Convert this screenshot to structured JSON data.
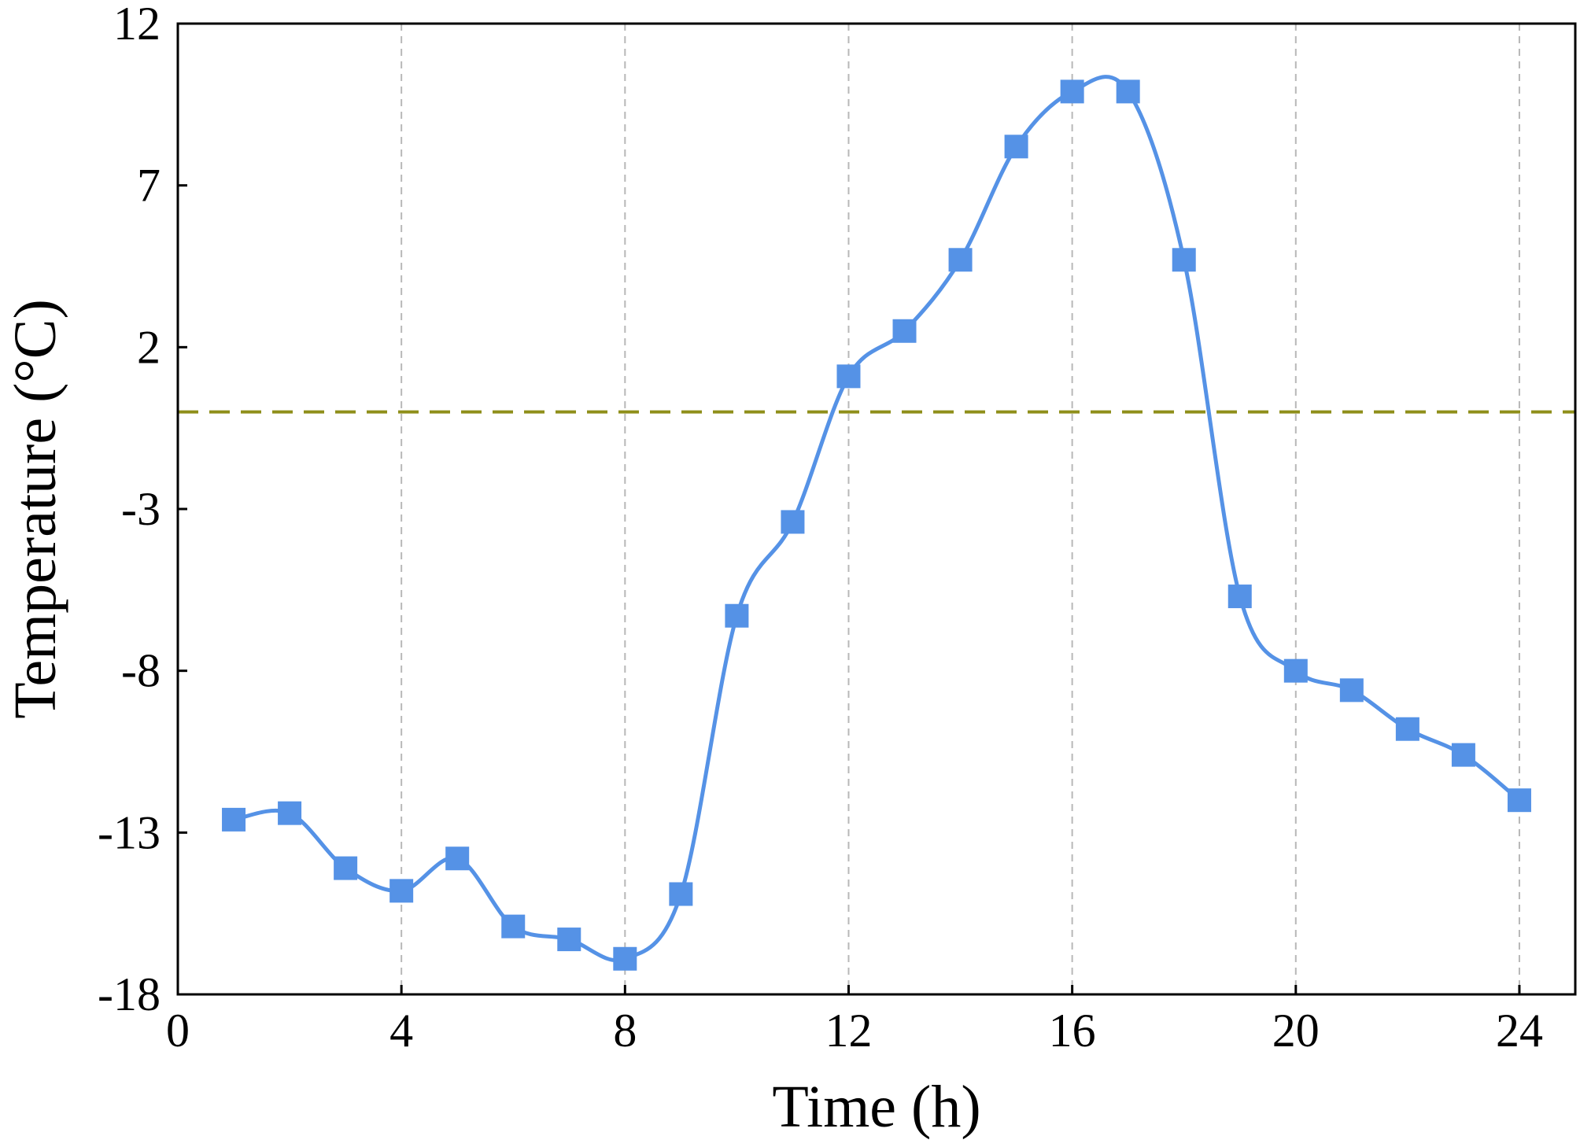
{
  "chart_data": {
    "type": "line",
    "xlabel": "Time (h)",
    "ylabel": "Temperature (°C)",
    "xlim": [
      0,
      25
    ],
    "ylim": [
      -18,
      12
    ],
    "xticks": [
      0,
      4,
      8,
      12,
      16,
      20,
      24
    ],
    "yticks": [
      -18,
      -13,
      -8,
      -3,
      2,
      7,
      12
    ],
    "xtick_labels": [
      "0",
      "4",
      "8",
      "12",
      "16",
      "20",
      "24"
    ],
    "ytick_labels": [
      "-18",
      "-13",
      "-8",
      "-3",
      "2",
      "7",
      "12"
    ],
    "grid": "vertical dashed at x ticks",
    "reference_line": {
      "y": 0,
      "style": "dashed",
      "color": "#8f8f1a"
    },
    "series": [
      {
        "color": "#5592e6",
        "marker": "square",
        "smooth": true,
        "x": [
          1,
          2,
          3,
          4,
          5,
          6,
          7,
          8,
          9,
          10,
          11,
          12,
          13,
          14,
          15,
          16,
          17,
          18,
          19,
          20,
          21,
          22,
          23,
          24
        ],
        "values": [
          -12.6,
          -12.4,
          -14.1,
          -14.8,
          -13.8,
          -15.9,
          -16.3,
          -16.9,
          -14.9,
          -6.3,
          -3.4,
          1.1,
          2.5,
          4.7,
          8.2,
          9.9,
          9.9,
          4.7,
          -5.7,
          -8.0,
          -8.6,
          -9.8,
          -10.6,
          -12.0
        ]
      }
    ]
  }
}
